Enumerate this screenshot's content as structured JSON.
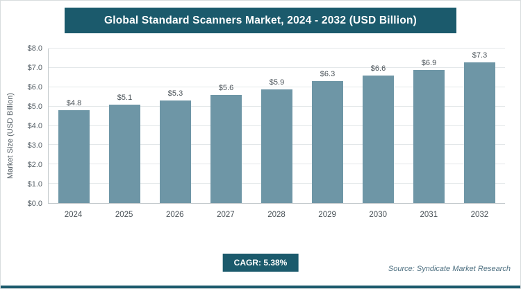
{
  "header": {
    "title": "Global Standard Scanners Market, 2024 - 2032 (USD Billion)"
  },
  "footer": {
    "cagr_label": "CAGR: 5.38%",
    "source": "Source: Syndicate Market Research"
  },
  "colors": {
    "header_bg": "#1b5a6c",
    "bar": "#6e96a6",
    "accent": "#1b5a6c",
    "gridline": "#e3e7e9"
  },
  "chart_data": {
    "type": "bar",
    "title": "Global Standard Scanners Market, 2024 - 2032 (USD Billion)",
    "categories": [
      "2024",
      "2025",
      "2026",
      "2027",
      "2028",
      "2029",
      "2030",
      "2031",
      "2032"
    ],
    "values": [
      4.8,
      5.1,
      5.3,
      5.6,
      5.9,
      6.3,
      6.6,
      6.9,
      7.3
    ],
    "value_labels": [
      "$4.8",
      "$5.1",
      "$5.3",
      "$5.6",
      "$5.9",
      "$6.3",
      "$6.6",
      "$6.9",
      "$7.3"
    ],
    "xlabel": "",
    "ylabel": "Market Size (USD Billion)",
    "ylim": [
      0,
      8
    ],
    "ytick_step": 1,
    "ytick_labels": [
      "$0.0",
      "$1.0",
      "$2.0",
      "$3.0",
      "$4.0",
      "$5.0",
      "$6.0",
      "$7.0",
      "$8.0"
    ],
    "grid": true,
    "legend": "none",
    "value_prefix": "$",
    "cagr": "5.38%"
  }
}
